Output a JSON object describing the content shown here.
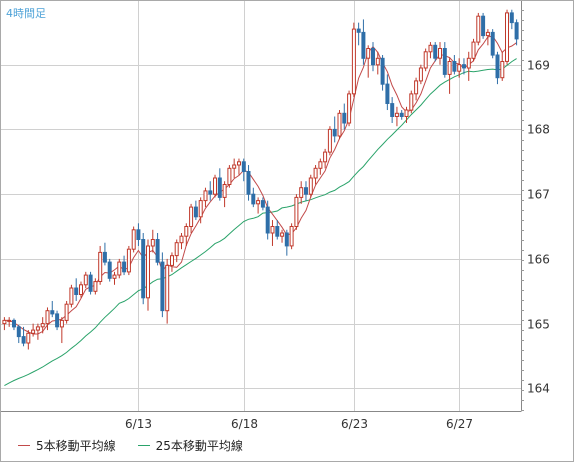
{
  "colors": {
    "up": "#c0392b",
    "down": "#2f6fa8",
    "ma5": "#c24a4a",
    "ma25": "#2aa36a",
    "grid": "#d0d0d0",
    "axis_text": "#333333",
    "period_text": "#4fa3d8"
  },
  "chart_data": {
    "type": "candlestick",
    "title": "4時間足",
    "xlabel": "",
    "ylabel": "",
    "ylim": [
      163.65,
      170.0
    ],
    "y_ticks": [
      164,
      165,
      166,
      167,
      168,
      169
    ],
    "x_ticks": [
      "6/13",
      "6/18",
      "6/23",
      "6/27"
    ],
    "grid": true,
    "legend_placement": "bottom",
    "legend": [
      "5本移動平均線",
      "25本移動平均線"
    ],
    "candles": [
      [
        165.0,
        165.1,
        164.9,
        165.05
      ],
      [
        165.05,
        165.1,
        164.95,
        165.05
      ],
      [
        165.05,
        165.08,
        164.9,
        164.95
      ],
      [
        164.95,
        164.98,
        164.7,
        164.8
      ],
      [
        164.8,
        164.95,
        164.65,
        164.7
      ],
      [
        164.7,
        164.9,
        164.6,
        164.85
      ],
      [
        164.85,
        165.0,
        164.8,
        164.9
      ],
      [
        164.9,
        165.0,
        164.75,
        164.95
      ],
      [
        164.95,
        165.1,
        164.85,
        165.0
      ],
      [
        165.0,
        165.25,
        164.9,
        165.2
      ],
      [
        165.2,
        165.35,
        165.1,
        165.15
      ],
      [
        165.15,
        165.2,
        164.9,
        164.95
      ],
      [
        164.95,
        165.1,
        164.7,
        165.05
      ],
      [
        165.05,
        165.35,
        165.0,
        165.3
      ],
      [
        165.3,
        165.6,
        165.25,
        165.55
      ],
      [
        165.55,
        165.7,
        165.35,
        165.45
      ],
      [
        165.45,
        165.65,
        165.4,
        165.6
      ],
      [
        165.6,
        165.8,
        165.55,
        165.75
      ],
      [
        165.75,
        165.8,
        165.45,
        165.5
      ],
      [
        165.5,
        165.7,
        165.45,
        165.65
      ],
      [
        165.65,
        166.2,
        165.6,
        166.1
      ],
      [
        166.1,
        166.25,
        165.9,
        165.95
      ],
      [
        165.95,
        166.0,
        165.65,
        165.7
      ],
      [
        165.7,
        165.8,
        165.6,
        165.75
      ],
      [
        165.75,
        166.0,
        165.7,
        165.95
      ],
      [
        165.95,
        166.05,
        165.75,
        165.8
      ],
      [
        165.8,
        166.2,
        165.75,
        166.15
      ],
      [
        166.15,
        166.5,
        166.1,
        166.45
      ],
      [
        166.45,
        166.55,
        166.2,
        166.3
      ],
      [
        166.3,
        166.4,
        165.3,
        165.4
      ],
      [
        165.4,
        166.3,
        165.2,
        166.2
      ],
      [
        166.2,
        166.45,
        166.1,
        166.3
      ],
      [
        166.3,
        166.4,
        165.9,
        165.95
      ],
      [
        165.95,
        166.1,
        165.1,
        165.2
      ],
      [
        165.2,
        166.0,
        165.0,
        165.9
      ],
      [
        165.9,
        166.1,
        165.8,
        166.05
      ],
      [
        166.05,
        166.3,
        165.95,
        166.25
      ],
      [
        166.25,
        166.4,
        166.15,
        166.35
      ],
      [
        166.35,
        166.55,
        166.2,
        166.5
      ],
      [
        166.5,
        166.85,
        166.4,
        166.8
      ],
      [
        166.8,
        166.9,
        166.6,
        166.65
      ],
      [
        166.65,
        166.95,
        166.55,
        166.9
      ],
      [
        166.9,
        167.1,
        166.8,
        167.05
      ],
      [
        167.05,
        167.2,
        166.9,
        167.0
      ],
      [
        167.0,
        167.3,
        166.95,
        167.25
      ],
      [
        167.25,
        167.4,
        166.9,
        166.95
      ],
      [
        166.95,
        167.2,
        166.8,
        167.15
      ],
      [
        167.15,
        167.45,
        167.1,
        167.4
      ],
      [
        167.4,
        167.55,
        167.25,
        167.45
      ],
      [
        167.45,
        167.55,
        167.3,
        167.5
      ],
      [
        167.5,
        167.55,
        167.2,
        167.35
      ],
      [
        167.35,
        167.45,
        166.9,
        167.0
      ],
      [
        167.0,
        167.1,
        166.8,
        166.85
      ],
      [
        166.85,
        166.95,
        166.7,
        166.9
      ],
      [
        166.9,
        166.95,
        166.75,
        166.8
      ],
      [
        166.8,
        166.9,
        166.3,
        166.4
      ],
      [
        166.4,
        166.6,
        166.2,
        166.5
      ],
      [
        166.5,
        166.6,
        166.3,
        166.35
      ],
      [
        166.35,
        166.45,
        166.25,
        166.4
      ],
      [
        166.4,
        166.45,
        166.05,
        166.2
      ],
      [
        166.2,
        166.55,
        166.15,
        166.5
      ],
      [
        166.5,
        167.0,
        166.45,
        166.95
      ],
      [
        166.95,
        167.2,
        166.85,
        167.1
      ],
      [
        167.1,
        167.2,
        166.9,
        167.0
      ],
      [
        167.0,
        167.3,
        166.95,
        167.25
      ],
      [
        167.25,
        167.45,
        167.15,
        167.4
      ],
      [
        167.4,
        167.55,
        167.3,
        167.5
      ],
      [
        167.5,
        167.7,
        167.4,
        167.65
      ],
      [
        167.65,
        168.05,
        167.6,
        168.0
      ],
      [
        168.0,
        168.2,
        167.8,
        167.9
      ],
      [
        167.9,
        168.3,
        167.85,
        168.25
      ],
      [
        168.25,
        168.4,
        168.0,
        168.1
      ],
      [
        168.1,
        168.6,
        168.05,
        168.55
      ],
      [
        168.55,
        169.65,
        168.5,
        169.55
      ],
      [
        169.55,
        169.65,
        169.3,
        169.5
      ],
      [
        169.5,
        169.7,
        169.0,
        169.1
      ],
      [
        169.1,
        169.3,
        168.8,
        169.25
      ],
      [
        169.25,
        169.35,
        168.9,
        169.0
      ],
      [
        169.0,
        169.2,
        168.85,
        169.1
      ],
      [
        169.1,
        169.15,
        168.6,
        168.7
      ],
      [
        168.7,
        168.85,
        168.3,
        168.4
      ],
      [
        168.4,
        168.5,
        168.1,
        168.2
      ],
      [
        168.2,
        168.35,
        168.05,
        168.25
      ],
      [
        168.25,
        168.3,
        168.15,
        168.2
      ],
      [
        168.2,
        168.35,
        168.1,
        168.3
      ],
      [
        168.3,
        168.6,
        168.25,
        168.55
      ],
      [
        168.55,
        168.8,
        168.45,
        168.75
      ],
      [
        168.75,
        169.0,
        168.7,
        168.95
      ],
      [
        168.95,
        169.25,
        168.9,
        169.2
      ],
      [
        169.2,
        169.35,
        169.1,
        169.3
      ],
      [
        169.3,
        169.35,
        169.05,
        169.1
      ],
      [
        169.1,
        169.35,
        169.0,
        169.25
      ],
      [
        169.25,
        169.35,
        168.8,
        168.85
      ],
      [
        168.85,
        169.1,
        168.55,
        169.05
      ],
      [
        169.05,
        169.15,
        168.85,
        168.9
      ],
      [
        168.9,
        169.1,
        168.8,
        169.0
      ],
      [
        169.0,
        169.1,
        168.85,
        168.95
      ],
      [
        168.95,
        169.2,
        168.75,
        169.1
      ],
      [
        169.1,
        169.4,
        169.05,
        169.35
      ],
      [
        169.35,
        169.8,
        169.3,
        169.75
      ],
      [
        169.75,
        169.8,
        169.4,
        169.45
      ],
      [
        169.45,
        169.55,
        169.3,
        169.5
      ],
      [
        169.5,
        169.55,
        169.1,
        169.15
      ],
      [
        169.15,
        169.2,
        168.7,
        168.8
      ],
      [
        168.8,
        169.2,
        168.75,
        169.05
      ],
      [
        169.05,
        169.85,
        169.0,
        169.8
      ],
      [
        169.8,
        169.85,
        169.55,
        169.65
      ],
      [
        169.65,
        169.7,
        169.3,
        169.4
      ]
    ],
    "x_tick_candle_index": [
      28,
      50,
      73,
      95
    ],
    "series": [
      {
        "name": "5本移動平均線",
        "type": "sma",
        "period": 5,
        "source": "close"
      },
      {
        "name": "25本移動平均線",
        "type": "sma",
        "period": 25,
        "source": "close",
        "seed_value": 164.0
      }
    ]
  }
}
